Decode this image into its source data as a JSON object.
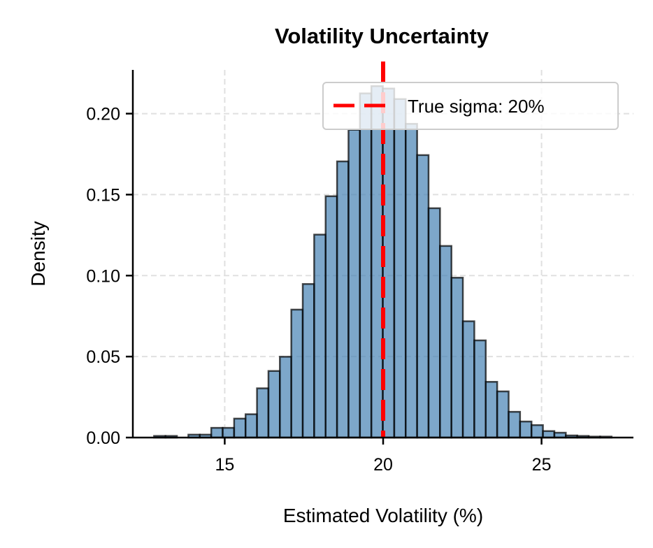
{
  "chart_data": {
    "type": "bar",
    "title": "Volatility Uncertainty",
    "xlabel": "Estimated Volatility (%)",
    "ylabel": "Density",
    "xlim": [
      12.1,
      27.9
    ],
    "ylim": [
      0,
      0.227
    ],
    "xticks": [
      15,
      20,
      25
    ],
    "xtick_labels": [
      "15",
      "20",
      "25"
    ],
    "yticks": [
      0,
      0.05,
      0.1,
      0.15,
      0.2
    ],
    "ytick_labels": [
      "0.00",
      "0.05",
      "0.10",
      "0.15",
      "0.20"
    ],
    "grid": true,
    "bin_start": 12.77,
    "bin_width": 0.361,
    "values": [
      0.001,
      0.001,
      0,
      0.0018,
      0.0018,
      0.006,
      0.006,
      0.0117,
      0.0144,
      0.0304,
      0.0411,
      0.0499,
      0.079,
      0.0948,
      0.1253,
      0.149,
      0.1705,
      0.19,
      0.2125,
      0.217,
      0.2155,
      0.209,
      0.1937,
      0.1744,
      0.1416,
      0.1183,
      0.0987,
      0.0718,
      0.06,
      0.0344,
      0.0285,
      0.0159,
      0.0099,
      0.0077,
      0.004,
      0.003,
      0.0013,
      0.001,
      0.0006,
      0.0006
    ],
    "bar_color": "#4682b4",
    "reference_line": {
      "x": 20,
      "label": "True sigma: 20%",
      "color": "#ff0000",
      "style": "dashed"
    },
    "legend_placement": "upper-right"
  }
}
